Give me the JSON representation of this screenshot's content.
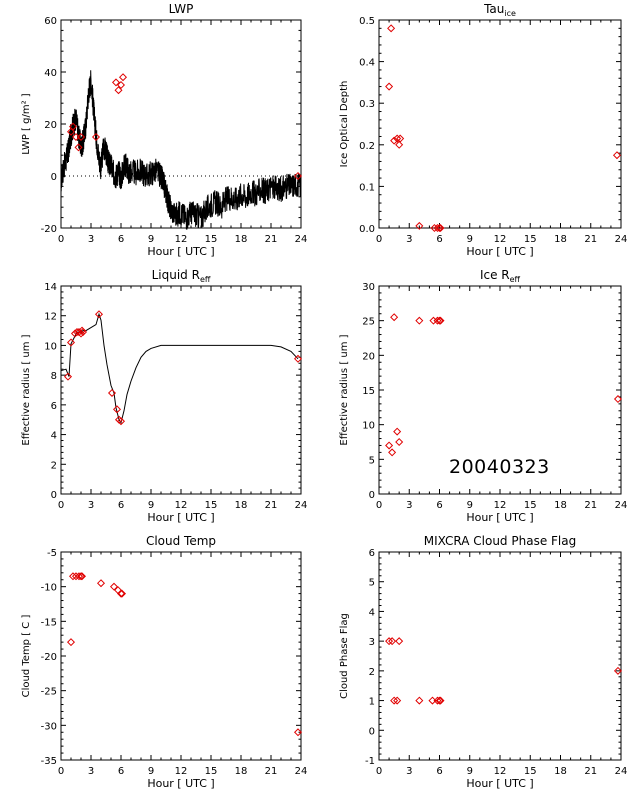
{
  "date_label": "20040323",
  "marker_color": "#e00000",
  "line_color": "#000000",
  "chart_data": [
    {
      "id": "lwp",
      "type": "line",
      "title": "LWP",
      "title_sub": "",
      "ylabel": "LWP [ g/m² ]",
      "xlabel": "Hour [ UTC ]",
      "xlim": [
        0,
        24
      ],
      "ylim": [
        -20,
        60
      ],
      "xticks": [
        0,
        3,
        6,
        9,
        12,
        15,
        18,
        21,
        24
      ],
      "yticks": [
        -20,
        0,
        20,
        40,
        60
      ],
      "zero_line": true,
      "line_series": {
        "name": "",
        "x": [
          0.0,
          0.25,
          0.5,
          0.75,
          1.0,
          1.25,
          1.5,
          1.75,
          2.0,
          2.25,
          2.5,
          2.75,
          3.0,
          3.25,
          3.5,
          3.75,
          4.0,
          4.25,
          4.5,
          4.75,
          5.0,
          5.25,
          5.5,
          5.75,
          6.0,
          6.25,
          6.5,
          6.75,
          7.0,
          7.5,
          8.0,
          8.5,
          9.0,
          9.5,
          10.0,
          10.25,
          10.5,
          10.75,
          11.0,
          11.5,
          12.0,
          12.5,
          13.0,
          13.5,
          14.0,
          14.5,
          15.0,
          15.5,
          16.0,
          16.5,
          17.0,
          17.5,
          18.0,
          18.5,
          19.0,
          19.5,
          20.0,
          20.5,
          21.0,
          21.5,
          22.0,
          22.5,
          23.0,
          23.5,
          24.0
        ],
        "y": [
          -2,
          3,
          6,
          10,
          16,
          20,
          22,
          16,
          11,
          14,
          20,
          32,
          37,
          26,
          16,
          8,
          3,
          12,
          9,
          5,
          4,
          1,
          0,
          2,
          -1,
          3,
          5,
          1,
          2,
          1,
          2,
          0,
          1,
          2,
          0,
          -3,
          -6,
          -10,
          -13,
          -15,
          -14,
          -16,
          -14,
          -15,
          -16,
          -13,
          -11,
          -10,
          -12,
          -9,
          -8,
          -9,
          -7,
          -8,
          -6,
          -7,
          -5,
          -6,
          -4,
          -5,
          -5,
          -4,
          -4,
          -3,
          -4
        ],
        "noise": 5
      },
      "markers": {
        "x": [
          1.0,
          1.2,
          1.5,
          1.75,
          2.0,
          3.5,
          5.5,
          5.75,
          6.0,
          6.2,
          23.7
        ],
        "y": [
          17,
          19,
          15,
          11,
          15,
          15,
          36,
          33,
          35,
          38,
          0
        ]
      }
    },
    {
      "id": "tau-ice",
      "type": "scatter",
      "title": "Tau",
      "title_sub": "ice",
      "ylabel": "Ice Optical Depth",
      "xlabel": "Hour [ UTC ]",
      "xlim": [
        0,
        24
      ],
      "ylim": [
        0,
        0.5
      ],
      "xticks": [
        0,
        3,
        6,
        9,
        12,
        15,
        18,
        21,
        24
      ],
      "yticks": [
        0.0,
        0.1,
        0.2,
        0.3,
        0.4,
        0.5
      ],
      "ytick_labels": [
        "0.0",
        "0.1",
        "0.2",
        "0.3",
        "0.4",
        "0.5"
      ],
      "markers": {
        "x": [
          1.0,
          1.2,
          1.5,
          1.8,
          2.0,
          2.1,
          4.0,
          5.5,
          5.8,
          6.0,
          6.1,
          23.6
        ],
        "y": [
          0.34,
          0.48,
          0.21,
          0.215,
          0.2,
          0.215,
          0.005,
          0.0,
          0.0,
          0.0,
          0.0,
          0.175
        ]
      }
    },
    {
      "id": "liquid-reff",
      "type": "line",
      "title": "Liquid R",
      "title_sub": "eff",
      "ylabel": "Effective radius [ um ]",
      "xlabel": "Hour [ UTC ]",
      "xlim": [
        0,
        24
      ],
      "ylim": [
        0,
        14
      ],
      "xticks": [
        0,
        3,
        6,
        9,
        12,
        15,
        18,
        21,
        24
      ],
      "yticks": [
        0,
        2,
        4,
        6,
        8,
        10,
        12,
        14
      ],
      "line_series": {
        "name": "",
        "x": [
          0.0,
          0.5,
          0.8,
          1.0,
          1.3,
          1.6,
          1.8,
          2.0,
          2.2,
          2.5,
          3.0,
          3.5,
          3.8,
          4.0,
          4.3,
          4.6,
          5.0,
          5.3,
          5.5,
          5.8,
          6.0,
          6.3,
          6.6,
          7.0,
          7.5,
          8.0,
          8.5,
          9.0,
          10.0,
          11.0,
          12.0,
          14.0,
          16.0,
          18.0,
          20.0,
          21.0,
          22.0,
          23.0,
          23.7
        ],
        "y": [
          8.3,
          8.4,
          7.9,
          10.1,
          10.5,
          10.9,
          10.9,
          10.9,
          11.0,
          11.0,
          11.2,
          11.4,
          12.1,
          11.7,
          10.0,
          8.7,
          7.3,
          6.8,
          5.8,
          5.0,
          4.8,
          5.6,
          6.7,
          7.6,
          8.5,
          9.2,
          9.6,
          9.8,
          10.0,
          10.0,
          10.0,
          10.0,
          10.0,
          10.0,
          10.0,
          10.0,
          9.9,
          9.6,
          9.1
        ]
      },
      "markers": {
        "x": [
          0.7,
          1.0,
          1.4,
          1.6,
          1.8,
          2.0,
          2.1,
          2.2,
          3.8,
          5.1,
          5.6,
          5.8,
          6.0,
          23.7
        ],
        "y": [
          7.9,
          10.2,
          10.8,
          10.9,
          10.9,
          10.8,
          11.0,
          10.9,
          12.1,
          6.8,
          5.7,
          5.0,
          4.9,
          9.1
        ]
      }
    },
    {
      "id": "ice-reff",
      "type": "scatter",
      "title": "Ice R",
      "title_sub": "eff",
      "ylabel": "Effective radius [ um ]",
      "xlabel": "Hour [ UTC ]",
      "xlim": [
        0,
        24
      ],
      "ylim": [
        0,
        30
      ],
      "xticks": [
        0,
        3,
        6,
        9,
        12,
        15,
        18,
        21,
        24
      ],
      "yticks": [
        0,
        5,
        10,
        15,
        20,
        25,
        30
      ],
      "markers": {
        "x": [
          1.0,
          1.3,
          1.5,
          1.8,
          2.0,
          4.0,
          5.4,
          5.8,
          6.0,
          6.1,
          23.7
        ],
        "y": [
          7.0,
          6.0,
          25.5,
          9.0,
          7.5,
          25.0,
          25.0,
          25.0,
          25.0,
          25.0,
          13.7
        ]
      }
    },
    {
      "id": "cloud-temp",
      "type": "scatter",
      "title": "Cloud Temp",
      "title_sub": "",
      "ylabel": "Cloud Temp [ C ]",
      "xlabel": "Hour [ UTC ]",
      "xlim": [
        0,
        24
      ],
      "ylim": [
        -35,
        -5
      ],
      "xticks": [
        0,
        3,
        6,
        9,
        12,
        15,
        18,
        21,
        24
      ],
      "yticks": [
        -35,
        -30,
        -25,
        -20,
        -15,
        -10,
        -5
      ],
      "markers": {
        "x": [
          1.0,
          1.2,
          1.5,
          1.8,
          2.0,
          2.1,
          4.0,
          5.3,
          5.7,
          6.0,
          6.1,
          23.7
        ],
        "y": [
          -18.0,
          -8.5,
          -8.5,
          -8.5,
          -8.5,
          -8.5,
          -9.5,
          -10.0,
          -10.5,
          -11.0,
          -11.0,
          -31.0
        ]
      }
    },
    {
      "id": "phase-flag",
      "type": "scatter",
      "title": "MIXCRA Cloud Phase Flag",
      "title_sub": "",
      "ylabel": "Cloud Phase Flag",
      "xlabel": "Hour [ UTC ]",
      "xlim": [
        0,
        24
      ],
      "ylim": [
        -1,
        6
      ],
      "xticks": [
        0,
        3,
        6,
        9,
        12,
        15,
        18,
        21,
        24
      ],
      "yticks": [
        -1,
        0,
        1,
        2,
        3,
        4,
        5,
        6
      ],
      "markers": {
        "x": [
          1.0,
          1.3,
          1.5,
          1.8,
          2.0,
          4.0,
          5.3,
          5.8,
          6.0,
          6.1,
          23.7
        ],
        "y": [
          3,
          3,
          1,
          1,
          3,
          1,
          1,
          1,
          1,
          1,
          2
        ]
      }
    }
  ]
}
